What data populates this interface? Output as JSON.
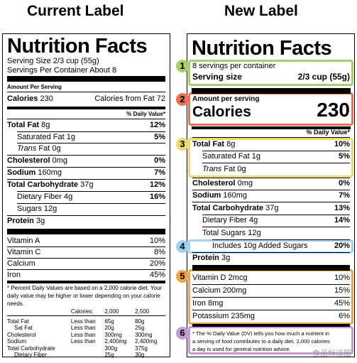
{
  "headings": {
    "current": "Current Label",
    "new": "New Label"
  },
  "current": {
    "title": "Nutrition Facts",
    "serving_size": "Serving Size 2/3 cup (55g)",
    "servings_per": "Servings Per Container About 8",
    "amount_per": "Amount Per Serving",
    "calories_label": "Calories",
    "calories_value": "230",
    "calories_fat": "Calories from Fat 72",
    "dv_header": "% Daily Value*",
    "nutrients": [
      {
        "name": "Total Fat",
        "amt": "8g",
        "dv": "12%"
      },
      {
        "name": "Saturated Fat",
        "amt": "1g",
        "dv": "5%"
      },
      {
        "name": "Trans",
        "amt": "Fat 0g",
        "dv": ""
      },
      {
        "name": "Cholesterol",
        "amt": "0mg",
        "dv": "0%"
      },
      {
        "name": "Sodium",
        "amt": "160mg",
        "dv": "7%"
      },
      {
        "name": "Total Carbohydrate",
        "amt": "37g",
        "dv": "12%"
      },
      {
        "name": "Dietary Fiber",
        "amt": "4g",
        "dv": "16%"
      },
      {
        "name": "Sugars",
        "amt": "12g",
        "dv": ""
      },
      {
        "name": "Protein",
        "amt": "3g",
        "dv": ""
      }
    ],
    "vitamins": [
      {
        "name": "Vitamin A",
        "dv": "10%"
      },
      {
        "name": "Vitamin C",
        "dv": "8%"
      },
      {
        "name": "Calcium",
        "dv": "20%"
      },
      {
        "name": "Iron",
        "dv": "45%"
      }
    ],
    "footnote": "* Percent Daily Values are based on a 2,000 calorie diet. Your daily value may be higher or lower depending on your calorie needs.",
    "fn_table": {
      "header": [
        "",
        "Calories:",
        "2,000",
        "2,500"
      ],
      "rows": [
        [
          "Total Fat",
          "Less than",
          "65g",
          "80g"
        ],
        [
          "Sat Fat",
          "Less than",
          "20g",
          "25g"
        ],
        [
          "Cholesterol",
          "Less than",
          "300mg",
          "300mg"
        ],
        [
          "Sodium",
          "Less than",
          "2,400mg",
          "2,400mg"
        ],
        [
          "Total Carbohydrate",
          "",
          "300g",
          "375g"
        ],
        [
          "Dietary Fiber",
          "",
          "25g",
          "30g"
        ]
      ]
    }
  },
  "new": {
    "title": "Nutrition Facts",
    "servings": "8 servings per container",
    "serving_size_label": "Serving size",
    "serving_size_value": "2/3 cup (55g)",
    "amount_per": "Amount per serving",
    "calories_label": "Calories",
    "calories_value": "230",
    "dv_header": "% Daily Value*",
    "nutrients": [
      {
        "name": "Total Fat",
        "amt": "8g",
        "dv": "10%"
      },
      {
        "name": "Saturated Fat",
        "amt": "1g",
        "dv": "5%"
      },
      {
        "name": "Trans",
        "amt": "Fat 0g",
        "dv": ""
      },
      {
        "name": "Cholesterol",
        "amt": "0mg",
        "dv": "0%"
      },
      {
        "name": "Sodium",
        "amt": "160mg",
        "dv": "7%"
      },
      {
        "name": "Total Carbohydrate",
        "amt": "37g",
        "dv": "13%"
      },
      {
        "name": "Dietary Fiber",
        "amt": "4g",
        "dv": "14%"
      },
      {
        "name": "Total Sugars",
        "amt": "12g",
        "dv": ""
      },
      {
        "name": "Includes 10g Added Sugars",
        "amt": "",
        "dv": "20%"
      },
      {
        "name": "Protein",
        "amt": "3g",
        "dv": ""
      }
    ],
    "vitamins": [
      {
        "name": "Vitamin D 2mcg",
        "dv": "10%"
      },
      {
        "name": "Calcium 200mg",
        "dv": "15%"
      },
      {
        "name": "Iron 8mg",
        "dv": "45%"
      },
      {
        "name": "Potassium 235mg",
        "dv": "6%"
      }
    ],
    "footnote_1": "* The % Daily Value (DV) tells you how much a nutrient in",
    "footnote_2": "a serving of food contributes to a daily diet. 2,000 calories",
    "footnote_3": "a day is used for general nutrition advice."
  },
  "markers": [
    "1",
    "2",
    "3",
    "4",
    "5",
    "6"
  ],
  "marker_colors": {
    "green": "#a8cf6a",
    "red": "#e8735a",
    "yellow": "#e9dc6e",
    "blue": "#9fd3f0",
    "orange": "#eda64b",
    "purple": "#c39bd3"
  },
  "watermark": "食品标法圈"
}
